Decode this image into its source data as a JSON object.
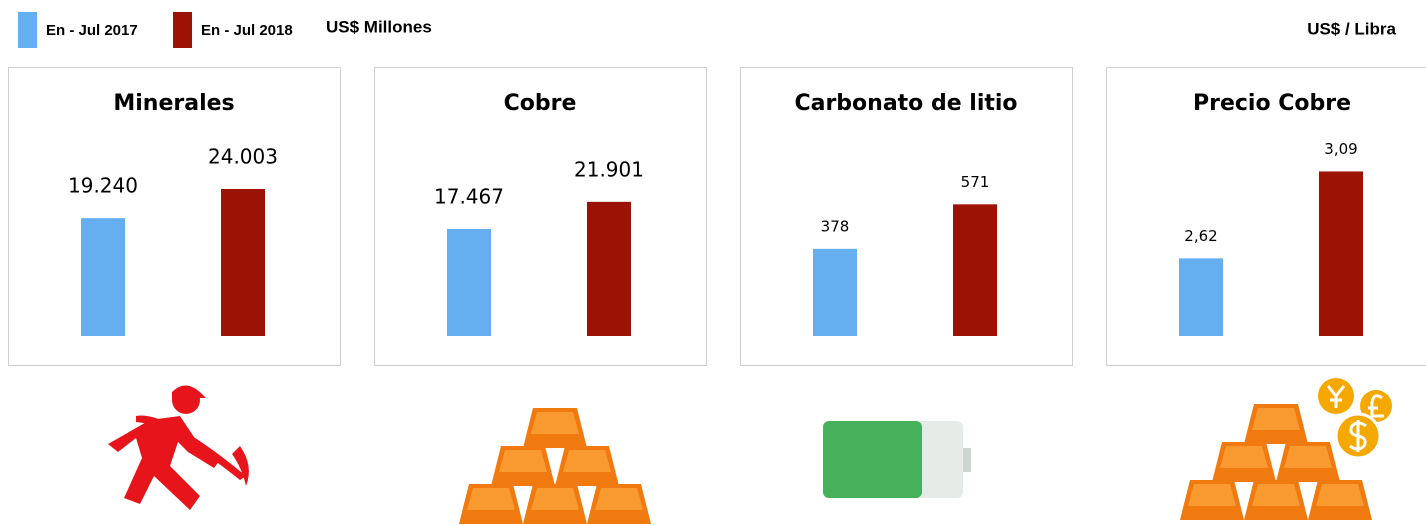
{
  "legend": [
    {
      "name": "En - Jul 2017",
      "color": "#65aef0"
    },
    {
      "name": "En - Jul 2018",
      "color": "#9c1306"
    }
  ],
  "unit_left": "US$ Millones",
  "unit_right": "US$ / Libra",
  "chart_data": [
    {
      "type": "bar",
      "title": "Minerales",
      "values": [
        19240,
        24003
      ],
      "value_labels": [
        "19.240",
        "24.003"
      ],
      "ylim": [
        0,
        32000
      ]
    },
    {
      "type": "bar",
      "title": "Cobre",
      "values": [
        17467,
        21901
      ],
      "value_labels": [
        "17.467",
        "21.901"
      ],
      "ylim": [
        0,
        32000
      ]
    },
    {
      "type": "bar",
      "title": "Carbonato de litio",
      "values": [
        378,
        571
      ],
      "value_labels": [
        "378",
        "571"
      ],
      "ylim": [
        0,
        850
      ]
    },
    {
      "type": "bar",
      "title": "Precio Cobre",
      "values": [
        2.62,
        3.09
      ],
      "value_labels": [
        "2,62",
        "3,09"
      ],
      "ylim": [
        2.2,
        3.26
      ]
    }
  ]
}
